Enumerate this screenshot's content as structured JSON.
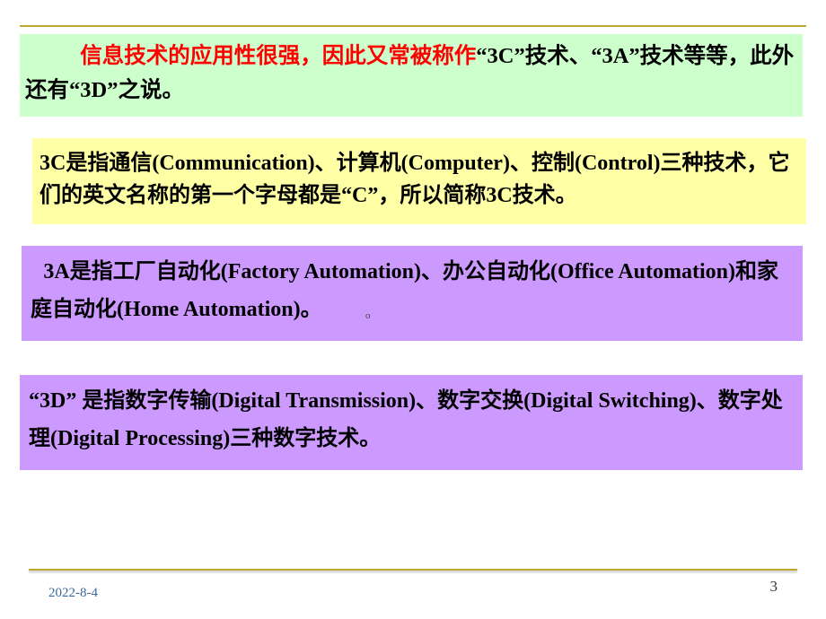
{
  "box1": {
    "lead": "信息技术的应用性很强，因此又常被称作",
    "tail": "“3C”技术、“3A”技术等等，此外还有“3D”之说。"
  },
  "box2": {
    "text": "3C是指通信(Communication)、计算机(Computer)、控制(Control)三种技术，它们的英文名称的第一个字母都是“C”，所以简称3C技术。"
  },
  "box3": {
    "text": "3A是指工厂自动化(Factory Automation)、办公自动化(Office Automation)和家庭自动化(Home Automation)。"
  },
  "box4": {
    "text": "“3D” 是指数字传输(Digital Transmission)、数字交换(Digital Switching)、数字处理(Digital Processing)三种数字技术。"
  },
  "marker": "o",
  "footer": {
    "date": "2022-8-4",
    "page": "3"
  },
  "colors": {
    "rule": "#c0a830",
    "box1_bg": "#ccffcc",
    "box2_bg": "#ffffa5",
    "box3_bg": "#cc99ff",
    "box4_bg": "#cc99ff",
    "lead_color": "#ff0000",
    "date_color": "#3a6aa0"
  }
}
